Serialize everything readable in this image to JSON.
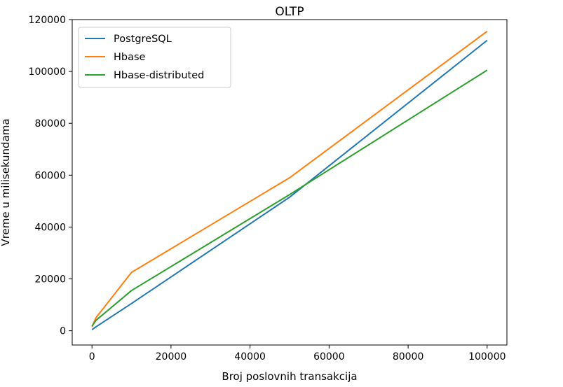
{
  "chart_data": {
    "type": "line",
    "title": "OLTP",
    "xlabel": "Broj poslovnih transakcija",
    "ylabel": "Vreme u milisekundama",
    "xlim": [
      -5000,
      105000
    ],
    "ylim": [
      -5500,
      120000
    ],
    "xticks": [
      0,
      20000,
      40000,
      60000,
      80000,
      100000
    ],
    "xtick_labels": [
      "0",
      "20000",
      "40000",
      "60000",
      "80000",
      "100000"
    ],
    "yticks": [
      0,
      20000,
      40000,
      60000,
      80000,
      100000,
      120000
    ],
    "ytick_labels": [
      "0",
      "20000",
      "40000",
      "60000",
      "80000",
      "100000",
      "120000"
    ],
    "grid": false,
    "legend_position": "top-left",
    "series": [
      {
        "name": "PostgreSQL",
        "color": "#1f77b4",
        "x": [
          0,
          1000,
          10000,
          50000,
          100000
        ],
        "y": [
          400,
          1500,
          10500,
          51500,
          112000
        ]
      },
      {
        "name": "Hbase",
        "color": "#ff7f0e",
        "x": [
          0,
          1000,
          10000,
          50000,
          100000
        ],
        "y": [
          1500,
          5000,
          22500,
          59000,
          115500
        ]
      },
      {
        "name": "Hbase-distributed",
        "color": "#2ca02c",
        "x": [
          0,
          1000,
          10000,
          50000,
          100000
        ],
        "y": [
          1700,
          4000,
          15500,
          52500,
          100500
        ]
      }
    ]
  }
}
